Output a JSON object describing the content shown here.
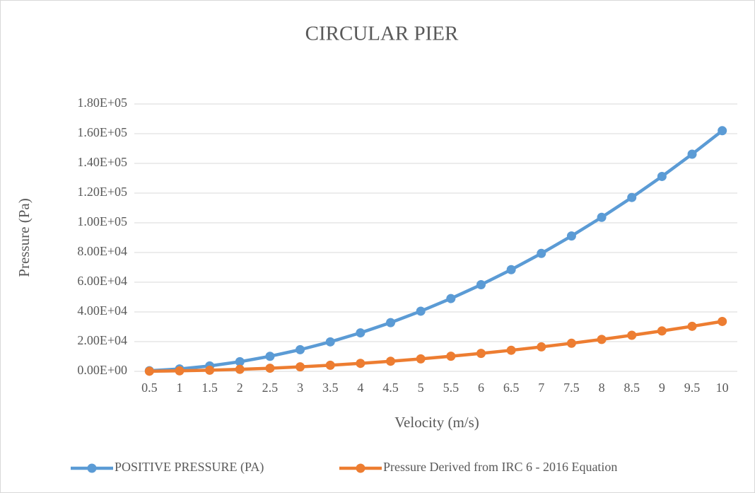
{
  "chart_data": {
    "type": "line",
    "title": "CIRCULAR PIER",
    "x_label": "Velocity (m/s)",
    "y_label": "Pressure (Pa)",
    "categories": [
      "0.5",
      "1",
      "1.5",
      "2",
      "2.5",
      "3",
      "3.5",
      "4",
      "4.5",
      "5",
      "5.5",
      "6",
      "6.5",
      "7",
      "7.5",
      "8",
      "8.5",
      "9",
      "9.5",
      "10"
    ],
    "series": [
      {
        "name": "POSITIVE PRESSURE (PA)",
        "color": "#5b9bd5",
        "values": [
          405,
          1620,
          3645,
          6480,
          10125,
          14580,
          19845,
          25920,
          32805,
          40500,
          49005,
          58320,
          68445,
          79380,
          91125,
          103680,
          117045,
          131220,
          146205,
          162000
        ]
      },
      {
        "name": "Pressure Derived from IRC 6 - 2016 Equation",
        "color": "#ed7d31",
        "values": [
          84,
          336,
          756,
          1344,
          2100,
          3024,
          4116,
          5376,
          6804,
          8400,
          10164,
          12096,
          14196,
          16464,
          18900,
          21504,
          24276,
          27216,
          30324,
          33600
        ]
      }
    ],
    "ylim": [
      0,
      180000
    ],
    "yticks": [
      {
        "value": 0,
        "label": "0.00E+00"
      },
      {
        "value": 20000,
        "label": "2.00E+04"
      },
      {
        "value": 40000,
        "label": "4.00E+04"
      },
      {
        "value": 60000,
        "label": "6.00E+04"
      },
      {
        "value": 80000,
        "label": "8.00E+04"
      },
      {
        "value": 100000,
        "label": "1.00E+05"
      },
      {
        "value": 120000,
        "label": "1.20E+05"
      },
      {
        "value": 140000,
        "label": "1.40E+05"
      },
      {
        "value": 160000,
        "label": "1.60E+05"
      },
      {
        "value": 180000,
        "label": "1.80E+05"
      }
    ],
    "grid": true,
    "legend": "bottom"
  }
}
